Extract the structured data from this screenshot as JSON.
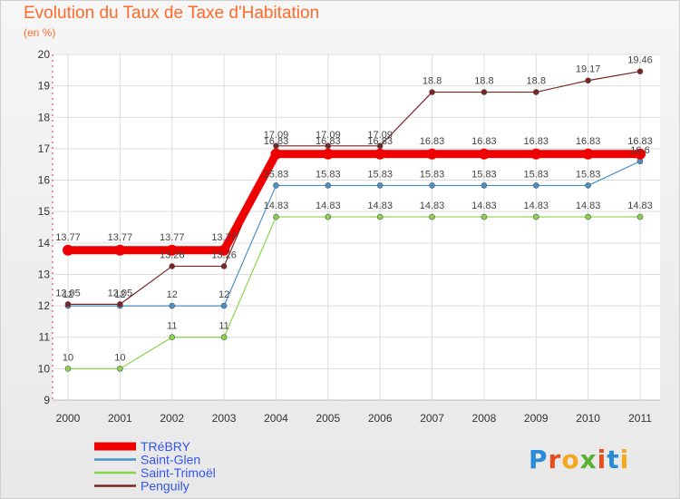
{
  "title": "Evolution du Taux de Taxe d'Habitation",
  "subtitle": "(en %)",
  "logo": {
    "text": "Proxiti",
    "colors": [
      "#2a8bd6",
      "#e84c1d",
      "#f3a81d",
      "#58b334",
      "#e84c1d",
      "#2a8bd6",
      "#f3a81d"
    ]
  },
  "chart_data": {
    "type": "line",
    "title": "Evolution du Taux de Taxe d'Habitation",
    "subtitle": "(en %)",
    "xlabel": "",
    "ylabel": "",
    "x": [
      2000,
      2001,
      2002,
      2003,
      2004,
      2005,
      2006,
      2007,
      2008,
      2009,
      2010,
      2011
    ],
    "ylim": [
      9,
      20
    ],
    "yticks": [
      9,
      10,
      11,
      12,
      13,
      14,
      15,
      16,
      17,
      18,
      19,
      20
    ],
    "grid": true,
    "legend_placement": "bottom-left",
    "series": [
      {
        "name": "TRéBRY",
        "color": "#ee0000",
        "bold": true,
        "values": [
          13.77,
          13.77,
          13.77,
          13.77,
          16.83,
          16.83,
          16.83,
          16.83,
          16.83,
          16.83,
          16.83,
          16.83
        ],
        "labels": [
          "13.77",
          "13.77",
          "13.77",
          "13.77",
          "16.83",
          "16.83",
          "16.83",
          "16.83",
          "16.83",
          "16.83",
          "16.83",
          "16.83"
        ]
      },
      {
        "name": "Saint-Glen",
        "color": "#4a90c8",
        "bold": false,
        "values": [
          12,
          12,
          12,
          12,
          15.83,
          15.83,
          15.83,
          15.83,
          15.83,
          15.83,
          15.83,
          16.6
        ],
        "labels": [
          "12",
          "12",
          "12",
          "12",
          "15.83",
          "15.83",
          "15.83",
          "15.83",
          "15.83",
          "15.83",
          "15.83",
          "16.6"
        ]
      },
      {
        "name": "Saint-Trimoël",
        "color": "#88d44a",
        "bold": false,
        "values": [
          10,
          10,
          11,
          11,
          14.83,
          14.83,
          14.83,
          14.83,
          14.83,
          14.83,
          14.83,
          14.83
        ],
        "labels": [
          "10",
          "10",
          "11",
          "11",
          "14.83",
          "14.83",
          "14.83",
          "14.83",
          "14.83",
          "14.83",
          "14.83",
          "14.83"
        ]
      },
      {
        "name": "Penguily",
        "color": "#7a2424",
        "bold": false,
        "values": [
          12.05,
          12.05,
          13.26,
          13.26,
          17.09,
          17.09,
          17.09,
          18.8,
          18.8,
          18.8,
          19.17,
          19.46
        ],
        "labels": [
          "12.05",
          "12.05",
          "13.26",
          "13.26",
          "17.09",
          "17.09",
          "17.09",
          "18.8",
          "18.8",
          "18.8",
          "19.17",
          "19.46"
        ]
      }
    ]
  }
}
